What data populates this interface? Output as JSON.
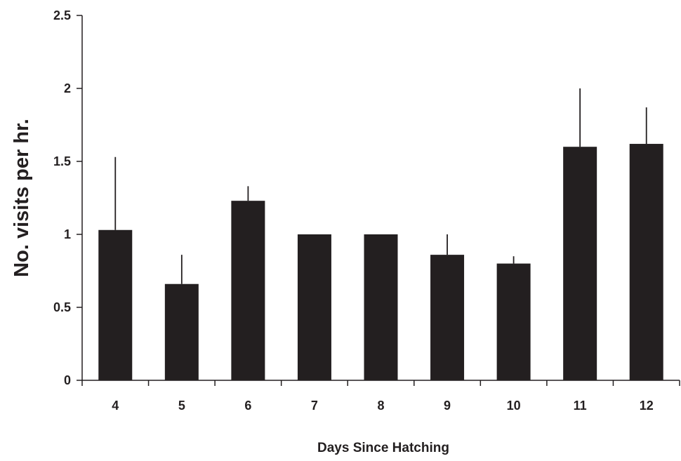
{
  "chart_data": {
    "type": "bar",
    "title": "",
    "xlabel": "Days Since Hatching",
    "ylabel": "No. visits per hr.",
    "categories": [
      "4",
      "5",
      "6",
      "7",
      "8",
      "9",
      "10",
      "11",
      "12"
    ],
    "values": [
      1.03,
      0.66,
      1.23,
      1.0,
      1.0,
      0.86,
      0.8,
      1.6,
      1.62
    ],
    "error_upper": [
      1.53,
      0.86,
      1.33,
      1.0,
      1.0,
      1.0,
      0.85,
      2.0,
      1.87
    ],
    "ylim": [
      0,
      2.5
    ],
    "yticks": [
      "0",
      "0.5",
      "1",
      "1.5",
      "2",
      "2.5"
    ],
    "grid": false,
    "legend": "none",
    "colors": {
      "bar": "#231f20",
      "axis": "#231f20"
    }
  }
}
